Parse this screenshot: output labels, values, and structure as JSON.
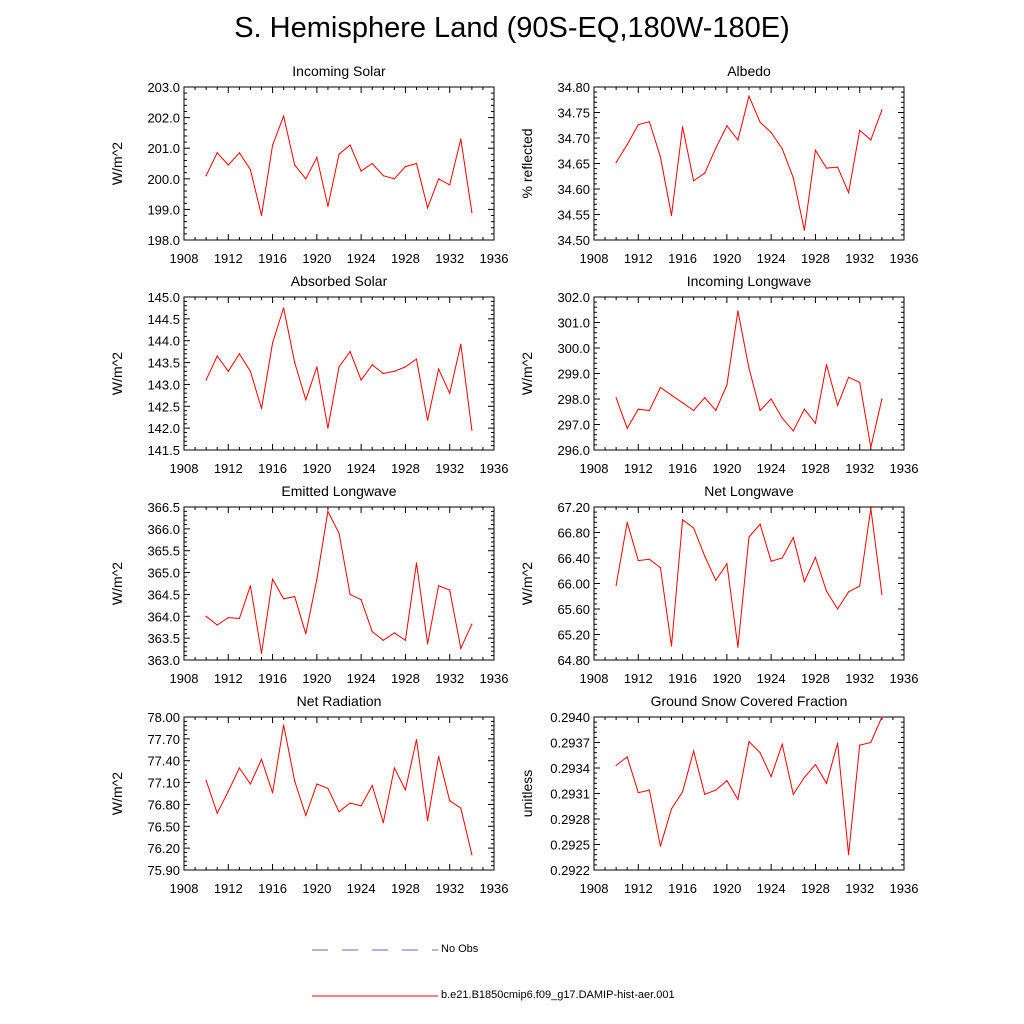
{
  "title": "S. Hemisphere Land (90S-EQ,180W-180E)",
  "colors": {
    "model": "#ff0000",
    "obs": "#6a6ad0",
    "axis": "#000000"
  },
  "legend": {
    "obs_label": "No Obs",
    "model_label": "b.e21.B1850cmip6.f09_g17.DAMIP-hist-aer.001"
  },
  "chart_data": [
    {
      "type": "line",
      "title": "Incoming Solar",
      "ylabel": "W/m^2",
      "xlim": [
        1908,
        1936
      ],
      "ylim": [
        198.0,
        203.0
      ],
      "xticks": [
        1908,
        1912,
        1916,
        1920,
        1924,
        1928,
        1932,
        1936
      ],
      "yticks": [
        "198.0",
        "199.0",
        "200.0",
        "201.0",
        "202.0",
        "203.0"
      ],
      "series": [
        {
          "name": "b.e21.B1850cmip6.f09_g17.DAMIP-hist-aer.001",
          "x": [
            1910,
            1911,
            1912,
            1913,
            1914,
            1915,
            1916,
            1917,
            1918,
            1919,
            1920,
            1921,
            1922,
            1923,
            1924,
            1925,
            1926,
            1927,
            1928,
            1929,
            1930,
            1931,
            1932,
            1933,
            1934
          ],
          "values": [
            200.1,
            200.85,
            200.45,
            200.85,
            200.3,
            198.8,
            201.1,
            202.05,
            200.45,
            200.0,
            200.7,
            199.1,
            200.8,
            201.1,
            200.25,
            200.5,
            200.1,
            200.0,
            200.4,
            200.5,
            199.05,
            200.0,
            199.8,
            201.3,
            198.9
          ]
        }
      ]
    },
    {
      "type": "line",
      "title": "Albedo",
      "ylabel": "% reflected",
      "xlim": [
        1908,
        1936
      ],
      "ylim": [
        34.5,
        34.8
      ],
      "xticks": [
        1908,
        1912,
        1916,
        1920,
        1924,
        1928,
        1932,
        1936
      ],
      "yticks": [
        "34.50",
        "34.55",
        "34.60",
        "34.65",
        "34.70",
        "34.75",
        "34.80"
      ],
      "series": [
        {
          "name": "b.e21.B1850cmip6.f09_g17.DAMIP-hist-aer.001",
          "x": [
            1910,
            1911,
            1912,
            1913,
            1914,
            1915,
            1916,
            1917,
            1918,
            1919,
            1920,
            1921,
            1922,
            1923,
            1924,
            1925,
            1926,
            1927,
            1928,
            1929,
            1930,
            1931,
            1932,
            1933,
            1934
          ],
          "values": [
            34.652,
            34.687,
            34.726,
            34.732,
            34.663,
            34.548,
            34.722,
            34.616,
            34.631,
            34.68,
            34.724,
            34.696,
            34.782,
            34.731,
            34.711,
            34.679,
            34.622,
            34.519,
            34.676,
            34.641,
            34.643,
            34.593,
            34.715,
            34.696,
            34.755
          ]
        }
      ]
    },
    {
      "type": "line",
      "title": "Absorbed Solar",
      "ylabel": "W/m^2",
      "xlim": [
        1908,
        1936
      ],
      "ylim": [
        141.5,
        145.0
      ],
      "xticks": [
        1908,
        1912,
        1916,
        1920,
        1924,
        1928,
        1932,
        1936
      ],
      "yticks": [
        "141.5",
        "142.0",
        "142.5",
        "143.0",
        "143.5",
        "144.0",
        "144.5",
        "145.0"
      ],
      "series": [
        {
          "name": "b.e21.B1850cmip6.f09_g17.DAMIP-hist-aer.001",
          "x": [
            1910,
            1911,
            1912,
            1913,
            1914,
            1915,
            1916,
            1917,
            1918,
            1919,
            1920,
            1921,
            1922,
            1923,
            1924,
            1925,
            1926,
            1927,
            1928,
            1929,
            1930,
            1931,
            1932,
            1933,
            1934
          ],
          "values": [
            143.1,
            143.65,
            143.3,
            143.7,
            143.3,
            142.45,
            143.95,
            144.75,
            143.5,
            142.65,
            143.4,
            142.0,
            143.4,
            143.75,
            143.1,
            143.45,
            143.25,
            143.3,
            143.4,
            143.58,
            142.18,
            143.35,
            142.8,
            143.92,
            141.95
          ]
        }
      ]
    },
    {
      "type": "line",
      "title": "Incoming Longwave",
      "ylabel": "W/m^2",
      "xlim": [
        1908,
        1936
      ],
      "ylim": [
        296.0,
        302.0
      ],
      "xticks": [
        1908,
        1912,
        1916,
        1920,
        1924,
        1928,
        1932,
        1936
      ],
      "yticks": [
        "296.0",
        "297.0",
        "298.0",
        "299.0",
        "300.0",
        "301.0",
        "302.0"
      ],
      "series": [
        {
          "name": "b.e21.B1850cmip6.f09_g17.DAMIP-hist-aer.001",
          "x": [
            1910,
            1911,
            1912,
            1913,
            1914,
            1915,
            1916,
            1917,
            1918,
            1919,
            1920,
            1921,
            1922,
            1923,
            1924,
            1925,
            1926,
            1927,
            1928,
            1929,
            1930,
            1931,
            1932,
            1933,
            1934
          ],
          "values": [
            298.05,
            296.85,
            297.6,
            297.55,
            298.45,
            298.15,
            297.85,
            297.55,
            298.05,
            297.55,
            298.55,
            301.45,
            299.2,
            297.55,
            298.0,
            297.25,
            296.75,
            297.6,
            297.05,
            299.35,
            297.75,
            298.85,
            298.65,
            296.1,
            298.0
          ]
        }
      ]
    },
    {
      "type": "line",
      "title": "Emitted Longwave",
      "ylabel": "W/m^2",
      "xlim": [
        1908,
        1936
      ],
      "ylim": [
        363.0,
        366.5
      ],
      "xticks": [
        1908,
        1912,
        1916,
        1920,
        1924,
        1928,
        1932,
        1936
      ],
      "yticks": [
        "363.0",
        "363.5",
        "364.0",
        "364.5",
        "365.0",
        "365.5",
        "366.0",
        "366.5"
      ],
      "series": [
        {
          "name": "b.e21.B1850cmip6.f09_g17.DAMIP-hist-aer.001",
          "x": [
            1910,
            1911,
            1912,
            1913,
            1914,
            1915,
            1916,
            1917,
            1918,
            1919,
            1920,
            1921,
            1922,
            1923,
            1924,
            1925,
            1926,
            1927,
            1928,
            1929,
            1930,
            1931,
            1932,
            1933,
            1934
          ],
          "values": [
            364.0,
            363.8,
            363.97,
            363.95,
            364.7,
            363.15,
            364.85,
            364.4,
            364.45,
            363.6,
            364.85,
            366.4,
            365.9,
            364.5,
            364.38,
            363.65,
            363.45,
            363.62,
            363.45,
            365.22,
            363.37,
            364.7,
            364.6,
            363.27,
            363.82
          ]
        }
      ]
    },
    {
      "type": "line",
      "title": "Net Longwave",
      "ylabel": "W/m^2",
      "xlim": [
        1908,
        1936
      ],
      "ylim": [
        64.8,
        67.2
      ],
      "xticks": [
        1908,
        1912,
        1916,
        1920,
        1924,
        1928,
        1932,
        1936
      ],
      "yticks": [
        "64.80",
        "65.20",
        "65.60",
        "66.00",
        "66.40",
        "66.80",
        "67.20"
      ],
      "series": [
        {
          "name": "b.e21.B1850cmip6.f09_g17.DAMIP-hist-aer.001",
          "x": [
            1910,
            1911,
            1912,
            1913,
            1914,
            1915,
            1916,
            1917,
            1918,
            1919,
            1920,
            1921,
            1922,
            1923,
            1924,
            1925,
            1926,
            1927,
            1928,
            1929,
            1930,
            1931,
            1932,
            1933,
            1934
          ],
          "values": [
            65.97,
            66.96,
            66.36,
            66.38,
            66.25,
            65.02,
            67.0,
            66.87,
            66.43,
            66.05,
            66.31,
            65.0,
            66.73,
            66.93,
            66.35,
            66.4,
            66.72,
            66.03,
            66.41,
            65.88,
            65.6,
            65.87,
            65.96,
            67.18,
            65.83
          ]
        }
      ]
    },
    {
      "type": "line",
      "title": "Net Radiation",
      "ylabel": "W/m^2",
      "xlim": [
        1908,
        1936
      ],
      "ylim": [
        75.9,
        78.0
      ],
      "xticks": [
        1908,
        1912,
        1916,
        1920,
        1924,
        1928,
        1932,
        1936
      ],
      "yticks": [
        "75.90",
        "76.20",
        "76.50",
        "76.80",
        "77.10",
        "77.40",
        "77.70",
        "78.00"
      ],
      "series": [
        {
          "name": "b.e21.B1850cmip6.f09_g17.DAMIP-hist-aer.001",
          "x": [
            1910,
            1911,
            1912,
            1913,
            1914,
            1915,
            1916,
            1917,
            1918,
            1919,
            1920,
            1921,
            1922,
            1923,
            1924,
            1925,
            1926,
            1927,
            1928,
            1929,
            1930,
            1931,
            1932,
            1933,
            1934
          ],
          "values": [
            77.13,
            76.68,
            76.98,
            77.3,
            77.08,
            77.42,
            76.96,
            77.89,
            77.12,
            76.65,
            77.08,
            77.02,
            76.7,
            76.82,
            76.78,
            77.06,
            76.55,
            77.3,
            77.0,
            77.69,
            76.58,
            77.46,
            76.85,
            76.75,
            76.11
          ]
        }
      ]
    },
    {
      "type": "line",
      "title": "Ground Snow Covered Fraction",
      "ylabel": "unitless",
      "xlim": [
        1908,
        1936
      ],
      "ylim": [
        0.2922,
        0.294
      ],
      "xticks": [
        1908,
        1912,
        1916,
        1920,
        1924,
        1928,
        1932,
        1936
      ],
      "yticks": [
        "0.2922",
        "0.2925",
        "0.2928",
        "0.2931",
        "0.2934",
        "0.2937",
        "0.2940"
      ],
      "series": [
        {
          "name": "b.e21.B1850cmip6.f09_g17.DAMIP-hist-aer.001",
          "x": [
            1910,
            1911,
            1912,
            1913,
            1914,
            1915,
            1916,
            1917,
            1918,
            1919,
            1920,
            1921,
            1922,
            1923,
            1924,
            1925,
            1926,
            1927,
            1928,
            1929,
            1930,
            1931,
            1932,
            1933,
            1934
          ],
          "values": [
            0.29343,
            0.29353,
            0.29311,
            0.29314,
            0.29248,
            0.29292,
            0.29312,
            0.2936,
            0.29309,
            0.29314,
            0.29325,
            0.29303,
            0.29371,
            0.29358,
            0.2933,
            0.29368,
            0.29309,
            0.29329,
            0.29344,
            0.29322,
            0.29369,
            0.29238,
            0.29367,
            0.2937,
            0.294
          ]
        }
      ]
    }
  ]
}
